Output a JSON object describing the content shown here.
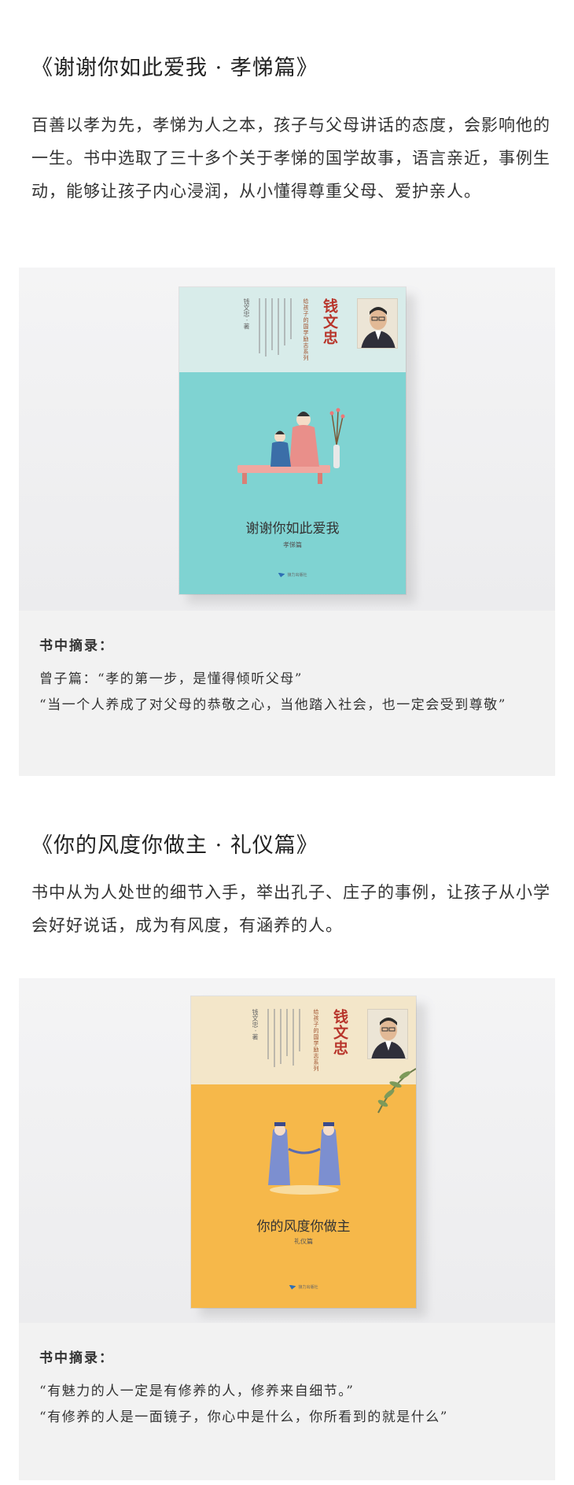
{
  "sections": [
    {
      "title": "《谢谢你如此爱我 · 孝悌篇》",
      "description": "百善以孝为先，孝悌为人之本，孩子与父母讲话的态度，会影响他的一生。书中选取了三十多个关于孝悌的国学故事，语言亲近，事例生动，能够让孩子内心浸润，从小懂得尊重父母、爱护亲人。",
      "book": {
        "author": "钱文忠",
        "author_note": "钱文忠 · 著",
        "series": "给孩子的国学励志系列",
        "title": "谢谢你如此爱我",
        "subtitle": "孝悌篇",
        "publisher": "接力出版社",
        "color_top": "#d8ecea",
        "color_bottom": "#7fd3d2"
      },
      "excerpt": {
        "heading": "书中摘录：",
        "lines": [
          "曾子篇：“孝的第一步，是懂得倾听父母”",
          "“当一个人养成了对父母的恭敬之心，当他踏入社会，也一定会受到尊敬”"
        ]
      }
    },
    {
      "title": "《你的风度你做主 · 礼仪篇》",
      "description": "书中从为人处世的细节入手，举出孔子、庄子的事例，让孩子从小学会好好说话，成为有风度，有涵养的人。",
      "book": {
        "author": "钱文忠",
        "author_note": "钱文忠 · 著",
        "series": "给孩子的国学励志系列",
        "title": "你的风度你做主",
        "subtitle": "礼仪篇",
        "publisher": "接力出版社",
        "color_top": "#f3e6c9",
        "color_bottom": "#f6b84a"
      },
      "excerpt": {
        "heading": "书中摘录：",
        "lines": [
          "“有魅力的人一定是有修养的人，修养来自细节。”",
          "“有修养的人是一面镜子，你心中是什么，你所看到的就是什么”"
        ]
      }
    }
  ]
}
